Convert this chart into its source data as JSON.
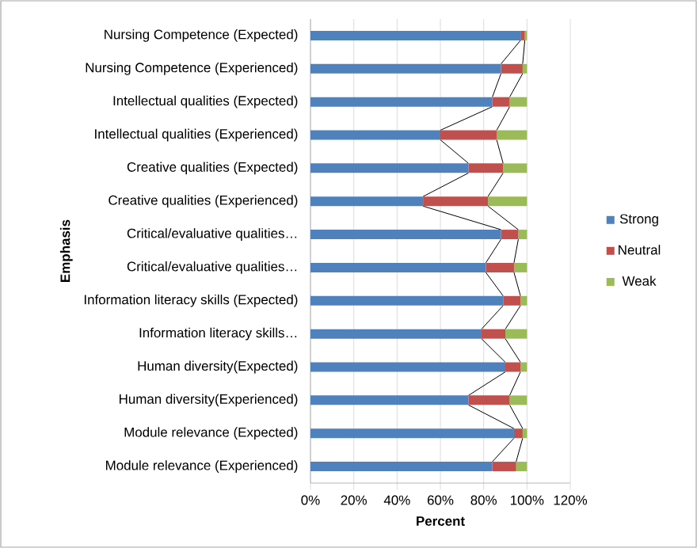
{
  "chart_data": {
    "type": "bar",
    "orientation": "horizontal",
    "stacked": true,
    "xlabel": "Percent",
    "ylabel": "Emphasis",
    "categories": [
      "Nursing Competence (Expected)",
      "Nursing Competence (Experienced)",
      "Intellectual qualities (Expected)",
      "Intellectual qualities (Experienced)",
      "Creative qualities (Expected)",
      "Creative qualities  (Experienced)",
      "Critical/evaluative qualities…",
      "Critical/evaluative qualities…",
      "Information literacy skills (Expected)",
      "Information literacy skills…",
      "Human diversity(Expected)",
      "Human diversity(Experienced)",
      "Module relevance (Expected)",
      "Module relevance (Experienced)"
    ],
    "series": [
      {
        "name": "Strong",
        "color": "#4f81bd",
        "values": [
          97,
          88,
          84,
          60,
          73,
          52,
          88,
          81,
          89,
          79,
          90,
          73,
          94,
          84
        ]
      },
      {
        "name": "Neutral",
        "color": "#c0504d",
        "values": [
          2,
          10,
          8,
          26,
          16,
          30,
          8,
          13,
          8,
          11,
          7,
          19,
          4,
          11
        ]
      },
      {
        "name": "Weak",
        "color": "#9bbb59",
        "values": [
          1,
          2,
          8,
          14,
          11,
          18,
          4,
          6,
          3,
          10,
          3,
          8,
          2,
          5
        ]
      }
    ],
    "xlim": [
      0,
      120
    ],
    "xticks": [
      {
        "value": 0,
        "label": "0%"
      },
      {
        "value": 20,
        "label": "20%"
      },
      {
        "value": 40,
        "label": "40%"
      },
      {
        "value": 60,
        "label": "60%"
      },
      {
        "value": 80,
        "label": "80%"
      },
      {
        "value": 100,
        "label": "100%"
      },
      {
        "value": 120,
        "label": "120%"
      }
    ],
    "grid": "x",
    "legend": "right"
  }
}
